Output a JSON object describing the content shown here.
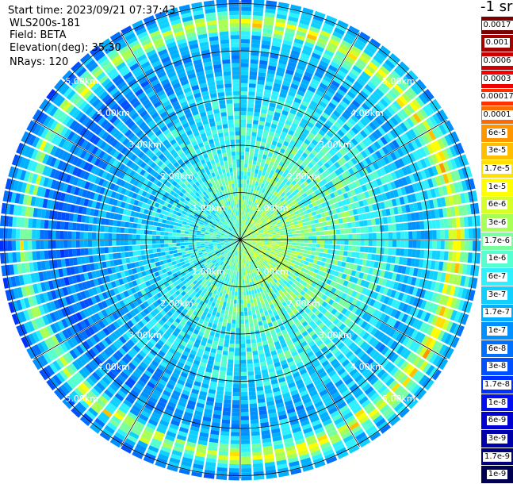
{
  "header": {
    "start_time": "Start time: 2023/09/21 07:37:43",
    "instrument": "WLS200s-181",
    "field": "Field: BETA",
    "elevation": "Elevation(deg): 35.30",
    "nrays": "NRays: 120"
  },
  "colorbar": {
    "unit_label": "-1 sr",
    "levels": [
      {
        "label": "0.0017",
        "color": "#7a0000"
      },
      {
        "label": "0.001",
        "color": "#a40000"
      },
      {
        "label": "0.0006",
        "color": "#cc0000"
      },
      {
        "label": "0.0003",
        "color": "#f00000"
      },
      {
        "label": "0.00017",
        "color": "#ff3000"
      },
      {
        "label": "0.0001",
        "color": "#ff6a00"
      },
      {
        "label": "6e-5",
        "color": "#ff9600"
      },
      {
        "label": "3e-5",
        "color": "#ffbe00"
      },
      {
        "label": "1.7e-5",
        "color": "#ffe000"
      },
      {
        "label": "1e-5",
        "color": "#ffff00"
      },
      {
        "label": "6e-6",
        "color": "#d6ff28"
      },
      {
        "label": "3e-6",
        "color": "#a8ff55"
      },
      {
        "label": "1.7e-6",
        "color": "#7affa0"
      },
      {
        "label": "1e-6",
        "color": "#55ffd0"
      },
      {
        "label": "6e-7",
        "color": "#2ef0ff"
      },
      {
        "label": "3e-7",
        "color": "#10d0ff"
      },
      {
        "label": "1.7e-7",
        "color": "#00b0ff"
      },
      {
        "label": "1e-7",
        "color": "#0090ff"
      },
      {
        "label": "6e-8",
        "color": "#0070ff"
      },
      {
        "label": "3e-8",
        "color": "#0050ff"
      },
      {
        "label": "1.7e-8",
        "color": "#0030ff"
      },
      {
        "label": "1e-8",
        "color": "#0010f0"
      },
      {
        "label": "6e-9",
        "color": "#0000d0"
      },
      {
        "label": "3e-9",
        "color": "#0000a8"
      },
      {
        "label": "1.7e-9",
        "color": "#00007a"
      },
      {
        "label": "1e-9",
        "color": "#000050"
      }
    ]
  },
  "chart_data": {
    "type": "heatmap",
    "projection": "polar (PPI scan)",
    "field": "BETA",
    "n_rays": 120,
    "range_labels": [
      "1.00km",
      "2.00km",
      "3.00km",
      "4.00km",
      "5.00km"
    ],
    "range_km": [
      1,
      2,
      3,
      4,
      5
    ],
    "max_range_km": 5.1,
    "color_scale": "log",
    "value_range": [
      1e-09,
      0.0017
    ],
    "radial_profile": [
      {
        "range_km": 0.0,
        "value": 2e-06
      },
      {
        "range_km": 0.8,
        "value": 1.5e-06
      },
      {
        "range_km": 1.6,
        "value": 9e-07
      },
      {
        "range_km": 2.4,
        "value": 6e-07
      },
      {
        "range_km": 3.2,
        "value": 3e-07
      },
      {
        "range_km": 3.8,
        "value": 1.2e-07
      },
      {
        "range_km": 4.3,
        "value": 3e-07
      },
      {
        "range_km": 4.6,
        "value": 5e-06
      },
      {
        "range_km": 4.85,
        "value": 3e-07
      },
      {
        "range_km": 5.05,
        "value": 1e-07
      }
    ]
  }
}
